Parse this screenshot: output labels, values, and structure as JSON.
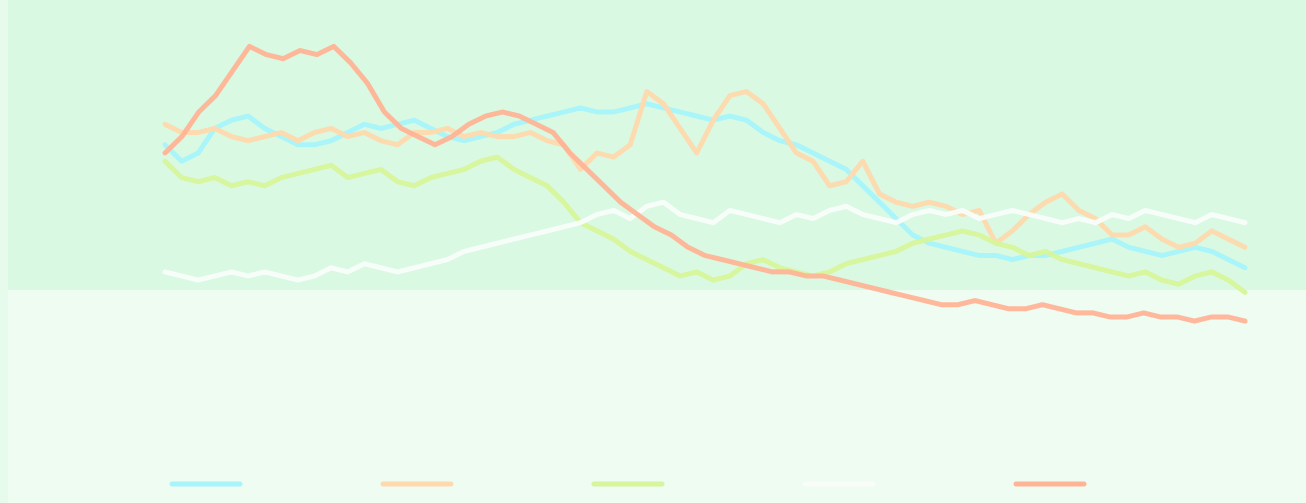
{
  "chart_data": {
    "type": "line",
    "title": "",
    "xlabel": "",
    "ylabel": "",
    "grid": false,
    "legend_position": "bottom",
    "ylim": [
      0,
      100
    ],
    "background_colors": {
      "upper": "#d9f9e3",
      "lower": "#eefcf1"
    },
    "series": [
      {
        "color": "#a8f4fb",
        "values": [
          72,
          68,
          70,
          76,
          78,
          79,
          76,
          74,
          72,
          72,
          73,
          75,
          77,
          76,
          77,
          78,
          76,
          74,
          73,
          74,
          75,
          77,
          78,
          79,
          80,
          81,
          80,
          80,
          81,
          82,
          81,
          80,
          79,
          78,
          79,
          78,
          75,
          73,
          72,
          70,
          68,
          66,
          62,
          58,
          54,
          50,
          48,
          47,
          46,
          45,
          45,
          44,
          45,
          45,
          46,
          47,
          48,
          49,
          47,
          46,
          45,
          46,
          47,
          46,
          44,
          42
        ]
      },
      {
        "color": "#ffd9ad",
        "values": [
          77,
          75,
          75,
          76,
          74,
          73,
          74,
          75,
          73,
          75,
          76,
          74,
          75,
          73,
          72,
          75,
          75,
          76,
          74,
          75,
          74,
          74,
          75,
          73,
          72,
          66,
          70,
          69,
          72,
          85,
          82,
          76,
          70,
          78,
          84,
          85,
          82,
          76,
          70,
          68,
          62,
          63,
          68,
          60,
          58,
          57,
          58,
          57,
          55,
          56,
          48,
          51,
          55,
          58,
          60,
          56,
          54,
          50,
          50,
          52,
          49,
          47,
          48,
          51,
          49,
          47
        ]
      },
      {
        "color": "#d7f59a",
        "values": [
          68,
          64,
          63,
          64,
          62,
          63,
          62,
          64,
          65,
          66,
          67,
          64,
          65,
          66,
          63,
          62,
          64,
          65,
          66,
          68,
          69,
          66,
          64,
          62,
          58,
          53,
          51,
          49,
          46,
          44,
          42,
          40,
          41,
          39,
          40,
          43,
          44,
          42,
          41,
          40,
          41,
          43,
          44,
          45,
          46,
          48,
          49,
          50,
          51,
          50,
          48,
          47,
          45,
          46,
          44,
          43,
          42,
          41,
          40,
          41,
          39,
          38,
          40,
          41,
          39,
          36
        ]
      },
      {
        "color": "#f9fdfa",
        "values": [
          41,
          40,
          39,
          40,
          41,
          40,
          41,
          40,
          39,
          40,
          42,
          41,
          43,
          42,
          41,
          42,
          43,
          44,
          46,
          47,
          48,
          49,
          50,
          51,
          52,
          53,
          55,
          56,
          54,
          57,
          58,
          55,
          54,
          53,
          56,
          55,
          54,
          53,
          55,
          54,
          56,
          57,
          55,
          54,
          53,
          55,
          56,
          55,
          56,
          54,
          55,
          56,
          55,
          54,
          53,
          54,
          53,
          55,
          54,
          56,
          55,
          54,
          53,
          55,
          54,
          53
        ]
      },
      {
        "color": "#ffb496",
        "values": [
          70,
          74,
          80,
          84,
          90,
          96,
          94,
          93,
          95,
          94,
          96,
          92,
          87,
          80,
          76,
          74,
          72,
          74,
          77,
          79,
          80,
          79,
          77,
          75,
          70,
          66,
          62,
          58,
          55,
          52,
          50,
          47,
          45,
          44,
          43,
          42,
          41,
          41,
          40,
          40,
          39,
          38,
          37,
          36,
          35,
          34,
          33,
          33,
          34,
          33,
          32,
          32,
          33,
          32,
          31,
          31,
          30,
          30,
          31,
          30,
          30,
          29,
          30,
          30,
          29
        ]
      }
    ]
  }
}
